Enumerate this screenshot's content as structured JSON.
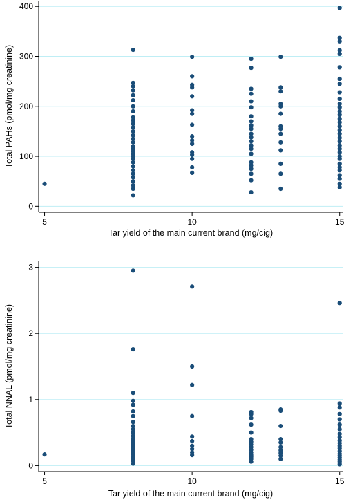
{
  "chart_data": [
    {
      "type": "scatter",
      "xlabel": "Tar yield of the main current brand (mg/cig)",
      "ylabel": "Total PAHs (pmol/mg creatinine)",
      "xticks": [
        5,
        10,
        15
      ],
      "yticks": [
        0,
        100,
        200,
        300,
        400
      ],
      "xlim": [
        4.8,
        15.1
      ],
      "ylim": [
        -12,
        410
      ],
      "grid": true,
      "color": "#1a4d78",
      "points": [
        {
          "x": 5,
          "y": 45
        },
        {
          "x": 8,
          "y": 22
        },
        {
          "x": 8,
          "y": 35
        },
        {
          "x": 8,
          "y": 42
        },
        {
          "x": 8,
          "y": 50
        },
        {
          "x": 8,
          "y": 58
        },
        {
          "x": 8,
          "y": 65
        },
        {
          "x": 8,
          "y": 72
        },
        {
          "x": 8,
          "y": 80
        },
        {
          "x": 8,
          "y": 88
        },
        {
          "x": 8,
          "y": 95
        },
        {
          "x": 8,
          "y": 100
        },
        {
          "x": 8,
          "y": 105
        },
        {
          "x": 8,
          "y": 110
        },
        {
          "x": 8,
          "y": 115
        },
        {
          "x": 8,
          "y": 120
        },
        {
          "x": 8,
          "y": 128
        },
        {
          "x": 8,
          "y": 135
        },
        {
          "x": 8,
          "y": 142
        },
        {
          "x": 8,
          "y": 150
        },
        {
          "x": 8,
          "y": 158
        },
        {
          "x": 8,
          "y": 165
        },
        {
          "x": 8,
          "y": 172
        },
        {
          "x": 8,
          "y": 178
        },
        {
          "x": 8,
          "y": 190
        },
        {
          "x": 8,
          "y": 200
        },
        {
          "x": 8,
          "y": 212
        },
        {
          "x": 8,
          "y": 222
        },
        {
          "x": 8,
          "y": 232
        },
        {
          "x": 8,
          "y": 240
        },
        {
          "x": 8,
          "y": 247
        },
        {
          "x": 8,
          "y": 313
        },
        {
          "x": 10,
          "y": 67
        },
        {
          "x": 10,
          "y": 78
        },
        {
          "x": 10,
          "y": 95
        },
        {
          "x": 10,
          "y": 103
        },
        {
          "x": 10,
          "y": 108
        },
        {
          "x": 10,
          "y": 125
        },
        {
          "x": 10,
          "y": 132
        },
        {
          "x": 10,
          "y": 140
        },
        {
          "x": 10,
          "y": 163
        },
        {
          "x": 10,
          "y": 185
        },
        {
          "x": 10,
          "y": 192
        },
        {
          "x": 10,
          "y": 220
        },
        {
          "x": 10,
          "y": 238
        },
        {
          "x": 10,
          "y": 243
        },
        {
          "x": 10,
          "y": 260
        },
        {
          "x": 10,
          "y": 299
        },
        {
          "x": 12,
          "y": 28
        },
        {
          "x": 12,
          "y": 52
        },
        {
          "x": 12,
          "y": 65
        },
        {
          "x": 12,
          "y": 75
        },
        {
          "x": 12,
          "y": 82
        },
        {
          "x": 12,
          "y": 88
        },
        {
          "x": 12,
          "y": 105
        },
        {
          "x": 12,
          "y": 115
        },
        {
          "x": 12,
          "y": 122
        },
        {
          "x": 12,
          "y": 130
        },
        {
          "x": 12,
          "y": 138
        },
        {
          "x": 12,
          "y": 145
        },
        {
          "x": 12,
          "y": 155
        },
        {
          "x": 12,
          "y": 162
        },
        {
          "x": 12,
          "y": 170
        },
        {
          "x": 12,
          "y": 180
        },
        {
          "x": 12,
          "y": 198
        },
        {
          "x": 12,
          "y": 210
        },
        {
          "x": 12,
          "y": 225
        },
        {
          "x": 12,
          "y": 235
        },
        {
          "x": 12,
          "y": 277
        },
        {
          "x": 12,
          "y": 295
        },
        {
          "x": 13,
          "y": 35
        },
        {
          "x": 13,
          "y": 65
        },
        {
          "x": 13,
          "y": 85
        },
        {
          "x": 13,
          "y": 112
        },
        {
          "x": 13,
          "y": 128
        },
        {
          "x": 13,
          "y": 145
        },
        {
          "x": 13,
          "y": 155
        },
        {
          "x": 13,
          "y": 160
        },
        {
          "x": 13,
          "y": 185
        },
        {
          "x": 13,
          "y": 200
        },
        {
          "x": 13,
          "y": 205
        },
        {
          "x": 13,
          "y": 230
        },
        {
          "x": 13,
          "y": 238
        },
        {
          "x": 13,
          "y": 299
        },
        {
          "x": 15,
          "y": 38
        },
        {
          "x": 15,
          "y": 45
        },
        {
          "x": 15,
          "y": 55
        },
        {
          "x": 15,
          "y": 62
        },
        {
          "x": 15,
          "y": 72
        },
        {
          "x": 15,
          "y": 78
        },
        {
          "x": 15,
          "y": 85
        },
        {
          "x": 15,
          "y": 95
        },
        {
          "x": 15,
          "y": 100
        },
        {
          "x": 15,
          "y": 108
        },
        {
          "x": 15,
          "y": 115
        },
        {
          "x": 15,
          "y": 122
        },
        {
          "x": 15,
          "y": 130
        },
        {
          "x": 15,
          "y": 137
        },
        {
          "x": 15,
          "y": 145
        },
        {
          "x": 15,
          "y": 152
        },
        {
          "x": 15,
          "y": 160
        },
        {
          "x": 15,
          "y": 168
        },
        {
          "x": 15,
          "y": 175
        },
        {
          "x": 15,
          "y": 183
        },
        {
          "x": 15,
          "y": 190
        },
        {
          "x": 15,
          "y": 198
        },
        {
          "x": 15,
          "y": 205
        },
        {
          "x": 15,
          "y": 215
        },
        {
          "x": 15,
          "y": 228
        },
        {
          "x": 15,
          "y": 245
        },
        {
          "x": 15,
          "y": 255
        },
        {
          "x": 15,
          "y": 278
        },
        {
          "x": 15,
          "y": 305
        },
        {
          "x": 15,
          "y": 312
        },
        {
          "x": 15,
          "y": 330
        },
        {
          "x": 15,
          "y": 337
        },
        {
          "x": 15,
          "y": 397
        }
      ]
    },
    {
      "type": "scatter",
      "xlabel": "Tar yield of the main current brand (mg/cig)",
      "ylabel": "Total NNAL (pmol/mg creatinine)",
      "xticks": [
        5,
        10,
        15
      ],
      "yticks": [
        0,
        1,
        2,
        3
      ],
      "xlim": [
        4.8,
        15.1
      ],
      "ylim": [
        -0.09,
        3.09
      ],
      "grid": true,
      "color": "#1a4d78",
      "points": [
        {
          "x": 5,
          "y": 0.17
        },
        {
          "x": 8,
          "y": 0.03
        },
        {
          "x": 8,
          "y": 0.07
        },
        {
          "x": 8,
          "y": 0.1
        },
        {
          "x": 8,
          "y": 0.13
        },
        {
          "x": 8,
          "y": 0.17
        },
        {
          "x": 8,
          "y": 0.2
        },
        {
          "x": 8,
          "y": 0.23
        },
        {
          "x": 8,
          "y": 0.26
        },
        {
          "x": 8,
          "y": 0.29
        },
        {
          "x": 8,
          "y": 0.32
        },
        {
          "x": 8,
          "y": 0.35
        },
        {
          "x": 8,
          "y": 0.38
        },
        {
          "x": 8,
          "y": 0.41
        },
        {
          "x": 8,
          "y": 0.45
        },
        {
          "x": 8,
          "y": 0.5
        },
        {
          "x": 8,
          "y": 0.55
        },
        {
          "x": 8,
          "y": 0.6
        },
        {
          "x": 8,
          "y": 0.66
        },
        {
          "x": 8,
          "y": 0.75
        },
        {
          "x": 8,
          "y": 0.82
        },
        {
          "x": 8,
          "y": 0.92
        },
        {
          "x": 8,
          "y": 0.98
        },
        {
          "x": 8,
          "y": 1.1
        },
        {
          "x": 8,
          "y": 1.76
        },
        {
          "x": 8,
          "y": 2.95
        },
        {
          "x": 10,
          "y": 0.16
        },
        {
          "x": 10,
          "y": 0.2
        },
        {
          "x": 10,
          "y": 0.25
        },
        {
          "x": 10,
          "y": 0.3
        },
        {
          "x": 10,
          "y": 0.37
        },
        {
          "x": 10,
          "y": 0.44
        },
        {
          "x": 10,
          "y": 0.75
        },
        {
          "x": 10,
          "y": 1.22
        },
        {
          "x": 10,
          "y": 1.5
        },
        {
          "x": 10,
          "y": 2.71
        },
        {
          "x": 12,
          "y": 0.06
        },
        {
          "x": 12,
          "y": 0.1
        },
        {
          "x": 12,
          "y": 0.13
        },
        {
          "x": 12,
          "y": 0.16
        },
        {
          "x": 12,
          "y": 0.2
        },
        {
          "x": 12,
          "y": 0.24
        },
        {
          "x": 12,
          "y": 0.28
        },
        {
          "x": 12,
          "y": 0.32
        },
        {
          "x": 12,
          "y": 0.36
        },
        {
          "x": 12,
          "y": 0.4
        },
        {
          "x": 12,
          "y": 0.5
        },
        {
          "x": 12,
          "y": 0.62
        },
        {
          "x": 12,
          "y": 0.72
        },
        {
          "x": 12,
          "y": 0.78
        },
        {
          "x": 12,
          "y": 0.81
        },
        {
          "x": 13,
          "y": 0.1
        },
        {
          "x": 13,
          "y": 0.15
        },
        {
          "x": 13,
          "y": 0.19
        },
        {
          "x": 13,
          "y": 0.23
        },
        {
          "x": 13,
          "y": 0.28
        },
        {
          "x": 13,
          "y": 0.35
        },
        {
          "x": 13,
          "y": 0.4
        },
        {
          "x": 13,
          "y": 0.6
        },
        {
          "x": 13,
          "y": 0.83
        },
        {
          "x": 13,
          "y": 0.85
        },
        {
          "x": 15,
          "y": 0.02
        },
        {
          "x": 15,
          "y": 0.06
        },
        {
          "x": 15,
          "y": 0.09
        },
        {
          "x": 15,
          "y": 0.12
        },
        {
          "x": 15,
          "y": 0.15
        },
        {
          "x": 15,
          "y": 0.18
        },
        {
          "x": 15,
          "y": 0.22
        },
        {
          "x": 15,
          "y": 0.26
        },
        {
          "x": 15,
          "y": 0.3
        },
        {
          "x": 15,
          "y": 0.34
        },
        {
          "x": 15,
          "y": 0.38
        },
        {
          "x": 15,
          "y": 0.43
        },
        {
          "x": 15,
          "y": 0.48
        },
        {
          "x": 15,
          "y": 0.55
        },
        {
          "x": 15,
          "y": 0.62
        },
        {
          "x": 15,
          "y": 0.7
        },
        {
          "x": 15,
          "y": 0.78
        },
        {
          "x": 15,
          "y": 0.88
        },
        {
          "x": 15,
          "y": 0.94
        },
        {
          "x": 15,
          "y": 2.46
        }
      ]
    }
  ]
}
